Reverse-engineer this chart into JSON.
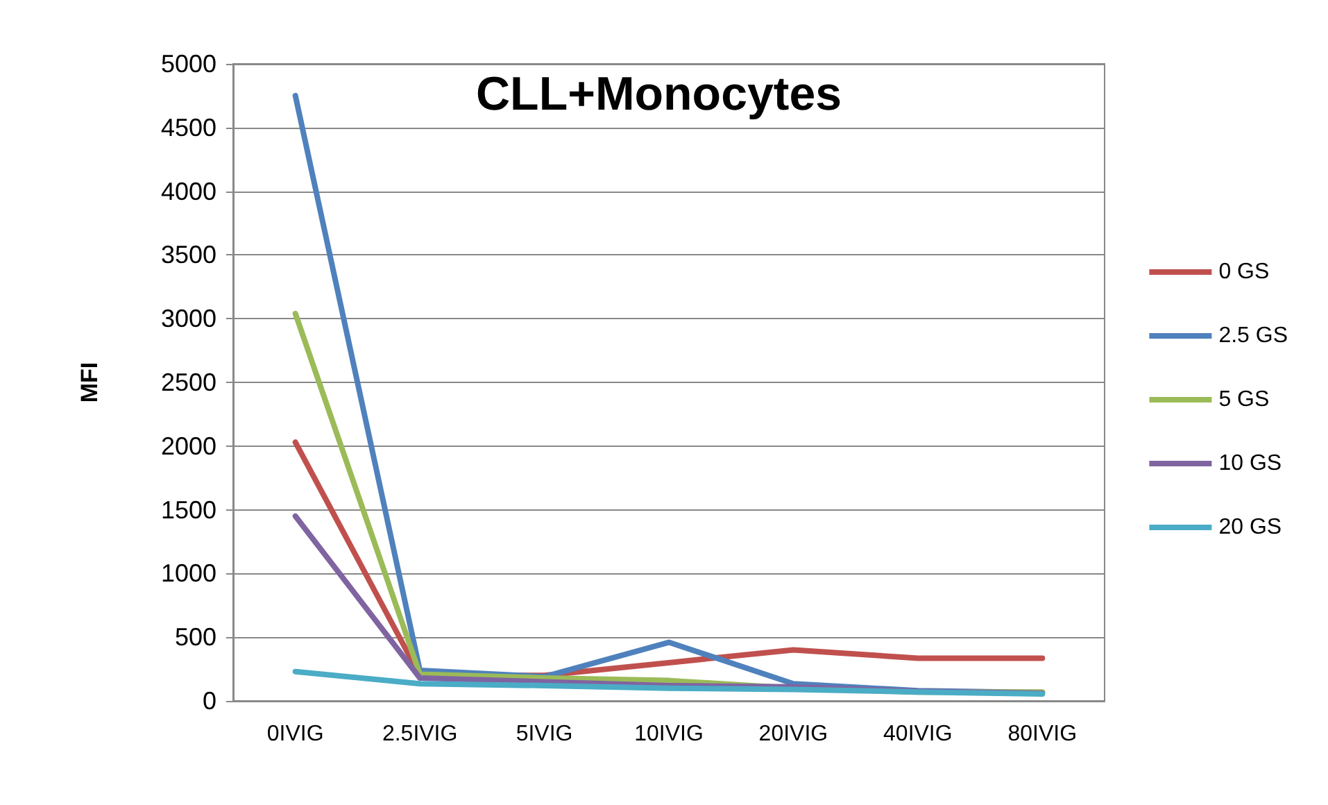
{
  "chart_data": {
    "type": "line",
    "title": "CLL+Monocytes",
    "ylabel": "MFI",
    "categories": [
      "0IVIG",
      "2.5IVIG",
      "5IVIG",
      "10IVIG",
      "20IVIG",
      "40IVIG",
      "80IVIG"
    ],
    "series": [
      {
        "name": "0 GS",
        "color": "#c0504d",
        "values": [
          2030,
          200,
          200,
          300,
          400,
          335,
          335
        ]
      },
      {
        "name": "2.5 GS",
        "color": "#4f81bd",
        "values": [
          4750,
          240,
          190,
          460,
          135,
          80,
          65
        ]
      },
      {
        "name": "5 GS",
        "color": "#9bbb59",
        "values": [
          3040,
          210,
          180,
          160,
          100,
          70,
          70
        ]
      },
      {
        "name": "10 GS",
        "color": "#8064a2",
        "values": [
          1450,
          180,
          150,
          120,
          110,
          75,
          60
        ]
      },
      {
        "name": "20 GS",
        "color": "#4bacc6",
        "values": [
          230,
          135,
          120,
          100,
          90,
          70,
          55
        ]
      }
    ],
    "ylim": [
      0,
      5000
    ],
    "yticks": [
      0,
      500,
      1000,
      1500,
      2000,
      2500,
      3000,
      3500,
      4000,
      4500,
      5000
    ],
    "grid": "y",
    "legend": "right",
    "marker": "none",
    "line_style": "solid"
  }
}
